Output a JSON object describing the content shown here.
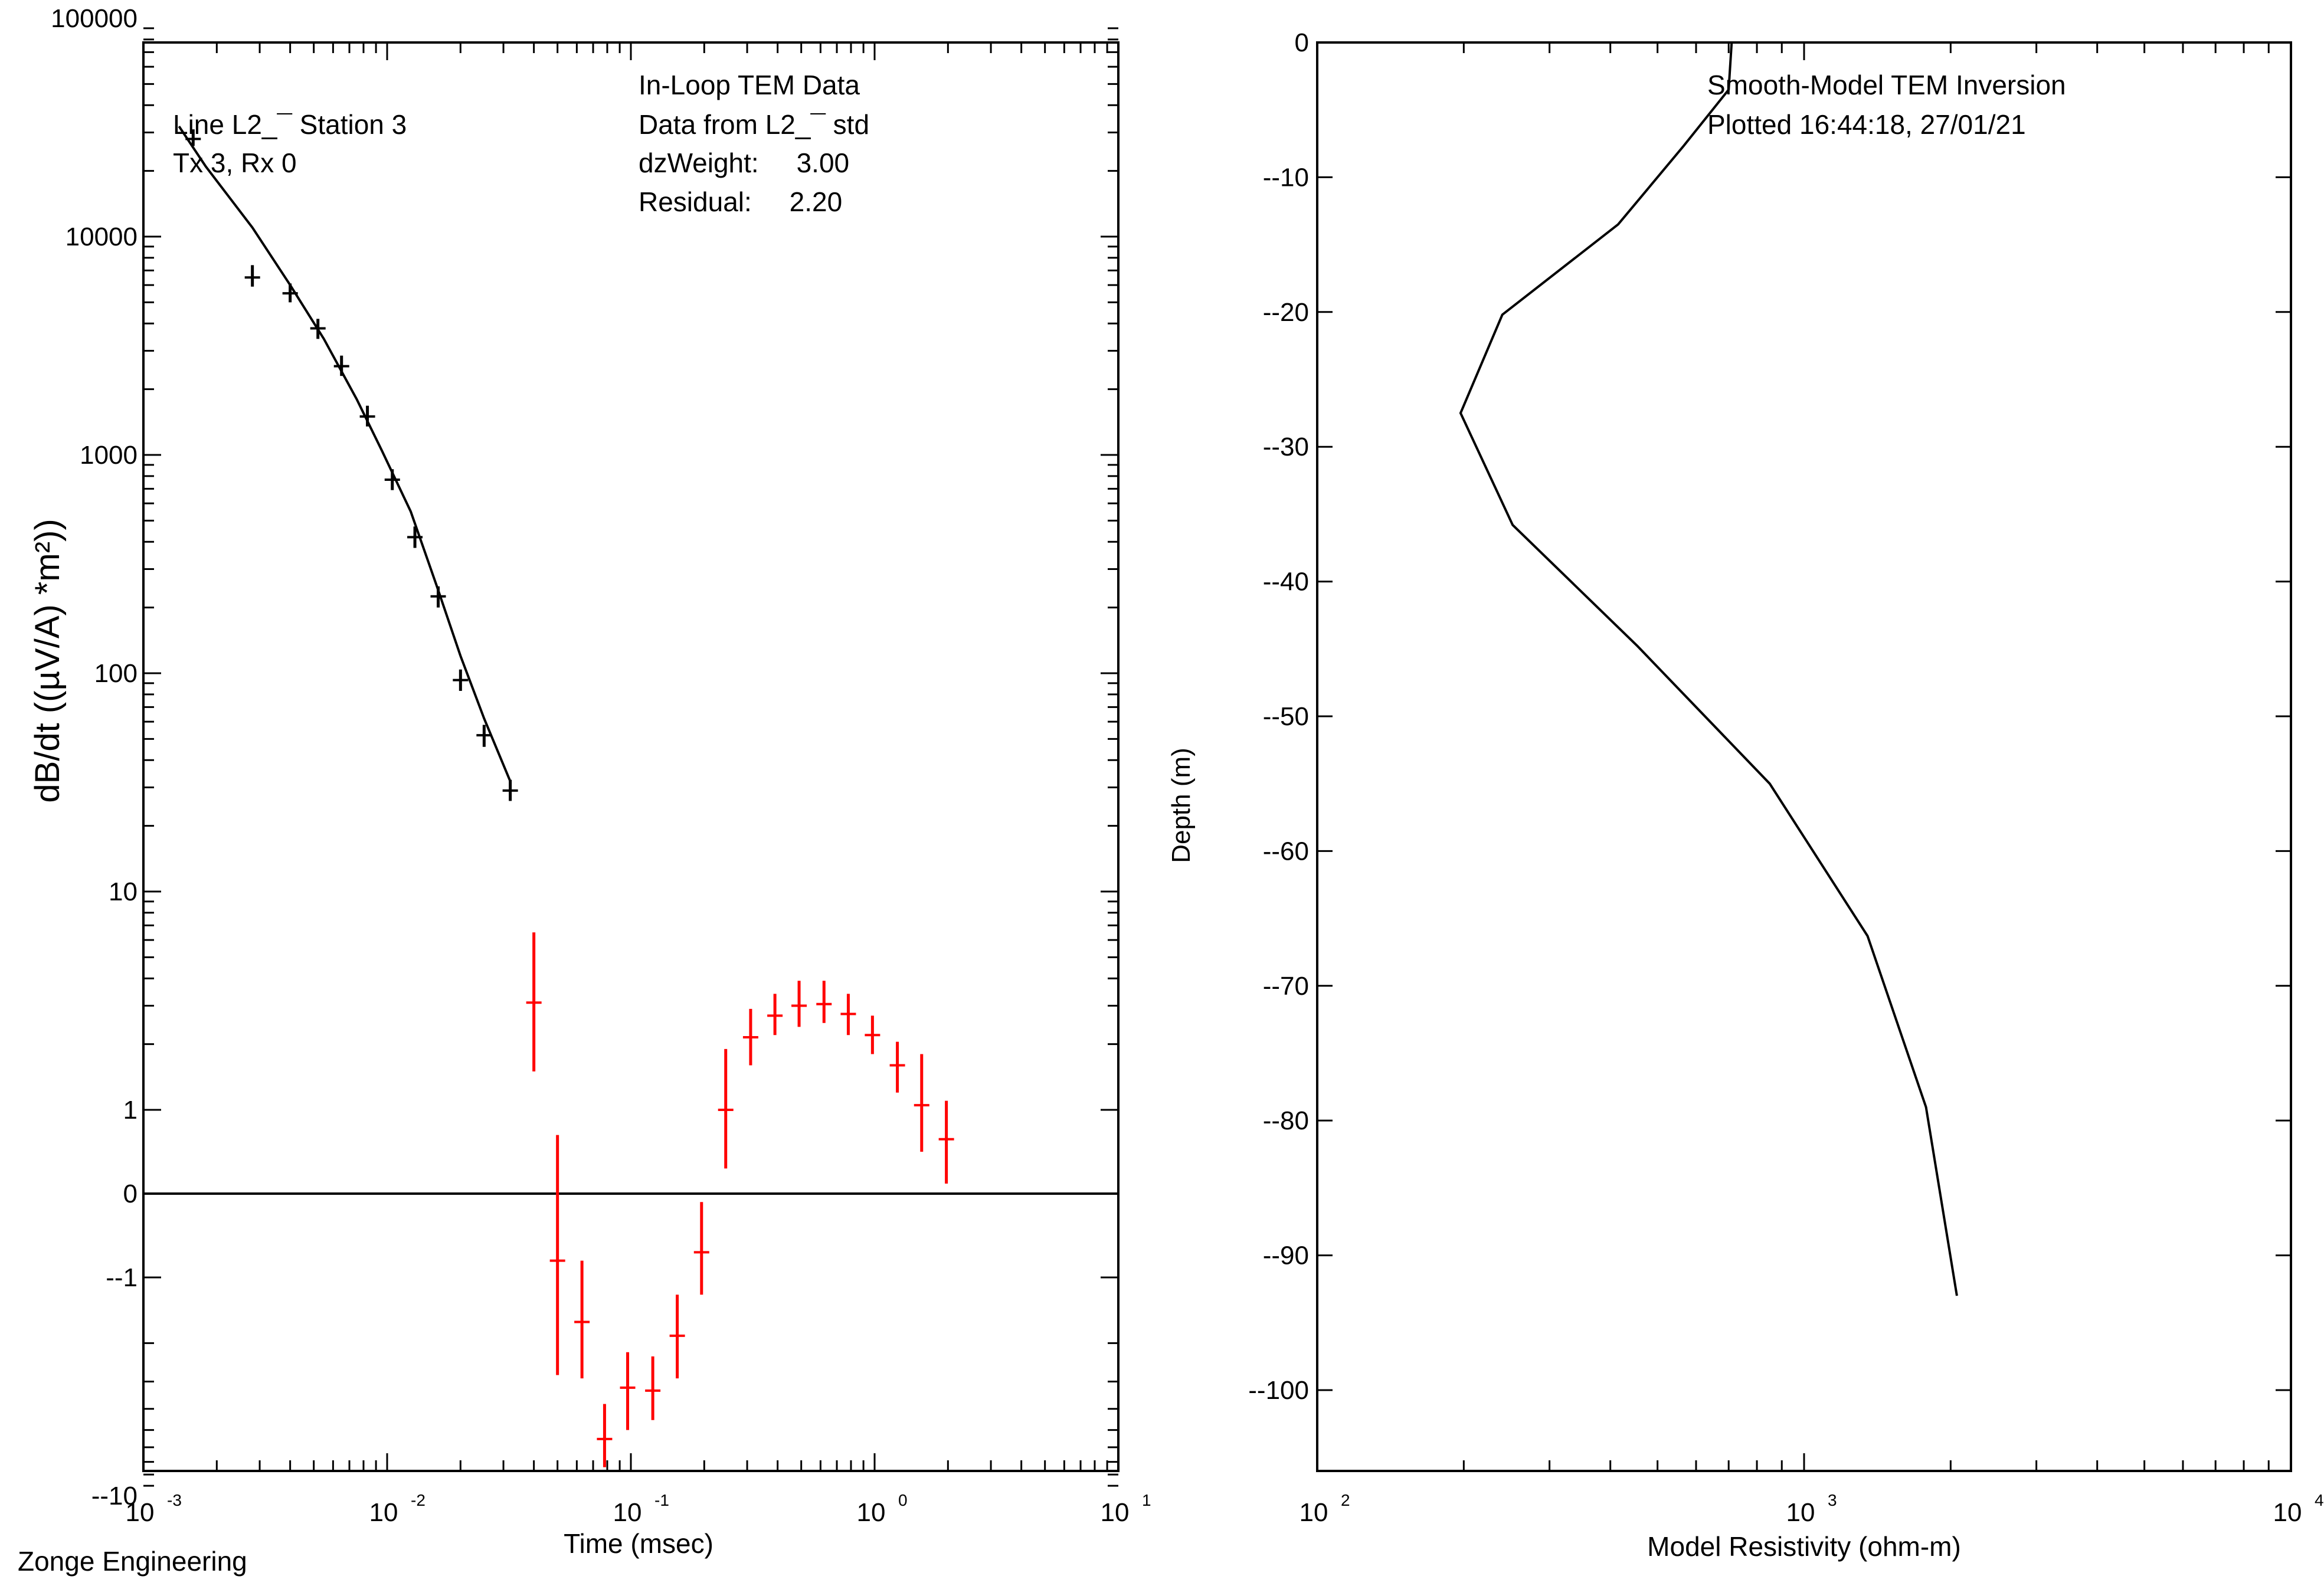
{
  "footer": "Zonge Engineering",
  "chart_data": [
    {
      "type": "scatter",
      "title": "In-Loop TEM Data",
      "xlabel": "Time (msec)",
      "ylabel": "dB/dt ((µV/A) *m²))",
      "xscale": "log",
      "xlim": [
        0.001,
        10
      ],
      "yscale": "symlog",
      "ylim": [
        -10,
        100000
      ],
      "x_ticks": [
        {
          "base": "10",
          "exp": "-3",
          "value": 0.001
        },
        {
          "base": "10",
          "exp": "-2",
          "value": 0.01
        },
        {
          "base": "10",
          "exp": "-1",
          "value": 0.1
        },
        {
          "base": "10",
          "exp": "0",
          "value": 1
        },
        {
          "base": "10",
          "exp": "1",
          "value": 10
        }
      ],
      "y_ticks": [
        {
          "label": "100000",
          "value": 100000
        },
        {
          "label": "10000",
          "value": 10000
        },
        {
          "label": "1000",
          "value": 1000
        },
        {
          "label": "100",
          "value": 100
        },
        {
          "label": "10",
          "value": 10
        },
        {
          "label": "1",
          "value": 1
        },
        {
          "label": "0",
          "value": 0
        },
        {
          "label": "--1",
          "value": -1
        },
        {
          "label": "--10",
          "value": -10
        }
      ],
      "annotations_left": [
        "Line L2_¯   Station 3",
        "Tx 3,  Rx 0"
      ],
      "annotations_right": [
        "In-Loop TEM Data",
        "Data from L2_¯  std",
        "dzWeight:     3.00",
        "Residual:     2.20"
      ],
      "series": [
        {
          "name": "Observed positive",
          "color": "#000000",
          "points": [
            {
              "x": 0.0016,
              "y": 28000,
              "lo": 26000,
              "hi": 31000
            },
            {
              "x": 0.0028,
              "y": 6500,
              "lo": 5900,
              "hi": 7400
            },
            {
              "x": 0.004,
              "y": 5500,
              "lo": 5000,
              "hi": 6100
            },
            {
              "x": 0.0052,
              "y": 3800,
              "lo": 3400,
              "hi": 4200
            },
            {
              "x": 0.0065,
              "y": 2550,
              "lo": 2300,
              "hi": 2850
            },
            {
              "x": 0.0083,
              "y": 1500,
              "lo": 1350,
              "hi": 1680
            },
            {
              "x": 0.0105,
              "y": 770,
              "lo": 690,
              "hi": 860
            },
            {
              "x": 0.013,
              "y": 420,
              "lo": 375,
              "hi": 470
            },
            {
              "x": 0.0162,
              "y": 225,
              "lo": 200,
              "hi": 250
            },
            {
              "x": 0.02,
              "y": 93,
              "lo": 83,
              "hi": 104
            },
            {
              "x": 0.025,
              "y": 52,
              "lo": 46,
              "hi": 58
            },
            {
              "x": 0.032,
              "y": 29,
              "lo": 26,
              "hi": 32.5
            }
          ]
        },
        {
          "name": "Observed sign-change",
          "color": "#ff0000",
          "points": [
            {
              "x": 0.04,
              "y": 3.1,
              "lo": 1.5,
              "hi": 6.5
            },
            {
              "x": 0.05,
              "y": -0.8,
              "lo": -2.8,
              "hi": 0.7
            },
            {
              "x": 0.063,
              "y": -1.6,
              "lo": -2.9,
              "hi": -0.8
            },
            {
              "x": 0.078,
              "y": -5.5,
              "lo": -7.4,
              "hi": -3.8
            },
            {
              "x": 0.097,
              "y": -3.2,
              "lo": -5.0,
              "hi": -2.2
            },
            {
              "x": 0.123,
              "y": -3.3,
              "lo": -4.5,
              "hi": -2.3
            },
            {
              "x": 0.155,
              "y": -1.85,
              "lo": -2.9,
              "hi": -1.2
            },
            {
              "x": 0.195,
              "y": -0.7,
              "lo": -1.2,
              "hi": -0.1
            },
            {
              "x": 0.245,
              "y": 1.0,
              "lo": 0.3,
              "hi": 1.9
            },
            {
              "x": 0.31,
              "y": 2.15,
              "lo": 1.6,
              "hi": 2.9
            },
            {
              "x": 0.39,
              "y": 2.7,
              "lo": 2.2,
              "hi": 3.4
            },
            {
              "x": 0.49,
              "y": 3.0,
              "lo": 2.4,
              "hi": 3.9
            },
            {
              "x": 0.62,
              "y": 3.05,
              "lo": 2.5,
              "hi": 3.9
            },
            {
              "x": 0.78,
              "y": 2.75,
              "lo": 2.2,
              "hi": 3.4
            },
            {
              "x": 0.98,
              "y": 2.2,
              "lo": 1.8,
              "hi": 2.7
            },
            {
              "x": 1.24,
              "y": 1.6,
              "lo": 1.2,
              "hi": 2.05
            },
            {
              "x": 1.56,
              "y": 1.05,
              "lo": 0.5,
              "hi": 1.8
            },
            {
              "x": 1.97,
              "y": 0.65,
              "lo": 0.12,
              "hi": 1.1
            }
          ]
        },
        {
          "name": "Calculated response",
          "color": "#000000",
          "line": [
            {
              "x": 0.0014,
              "y": 32000
            },
            {
              "x": 0.0018,
              "y": 21000
            },
            {
              "x": 0.0028,
              "y": 11000
            },
            {
              "x": 0.004,
              "y": 6000
            },
            {
              "x": 0.0055,
              "y": 3400
            },
            {
              "x": 0.0075,
              "y": 1800
            },
            {
              "x": 0.0095,
              "y": 1050
            },
            {
              "x": 0.0125,
              "y": 550
            },
            {
              "x": 0.016,
              "y": 250
            },
            {
              "x": 0.02,
              "y": 120
            },
            {
              "x": 0.025,
              "y": 62
            },
            {
              "x": 0.032,
              "y": 32
            }
          ]
        }
      ]
    },
    {
      "type": "line",
      "title": "Smooth-Model TEM Inversion",
      "subtitle": "Plotted 16:44:18, 27/01/21",
      "xlabel": "Model Resistivity (ohm-m)",
      "ylabel": "Depth (m)",
      "xscale": "log",
      "xlim": [
        100,
        10000
      ],
      "ylim": [
        -106,
        0
      ],
      "x_ticks": [
        {
          "base": "10",
          "exp": "2",
          "value": 100
        },
        {
          "base": "10",
          "exp": "3",
          "value": 1000
        },
        {
          "base": "10",
          "exp": "4",
          "value": 10000
        }
      ],
      "y_ticks": [
        {
          "label": "0",
          "value": 0
        },
        {
          "label": "--10",
          "value": -10
        },
        {
          "label": "--20",
          "value": -20
        },
        {
          "label": "--30",
          "value": -30
        },
        {
          "label": "--40",
          "value": -40
        },
        {
          "label": "--50",
          "value": -50
        },
        {
          "label": "--60",
          "value": -60
        },
        {
          "label": "--70",
          "value": -70
        },
        {
          "label": "--80",
          "value": -80
        },
        {
          "label": "--90",
          "value": -90
        },
        {
          "label": "--100",
          "value": -100
        }
      ],
      "series": [
        {
          "name": "Model",
          "color": "#000000",
          "points": [
            {
              "x": 710,
              "y": 0
            },
            {
              "x": 700,
              "y": -3.5
            },
            {
              "x": 565,
              "y": -7.7
            },
            {
              "x": 415,
              "y": -13.5
            },
            {
              "x": 240,
              "y": -20.2
            },
            {
              "x": 197,
              "y": -27.5
            },
            {
              "x": 252,
              "y": -35.8
            },
            {
              "x": 455,
              "y": -44.8
            },
            {
              "x": 850,
              "y": -55
            },
            {
              "x": 1350,
              "y": -66.3
            },
            {
              "x": 1780,
              "y": -79
            },
            {
              "x": 2060,
              "y": -93
            }
          ]
        }
      ]
    }
  ]
}
